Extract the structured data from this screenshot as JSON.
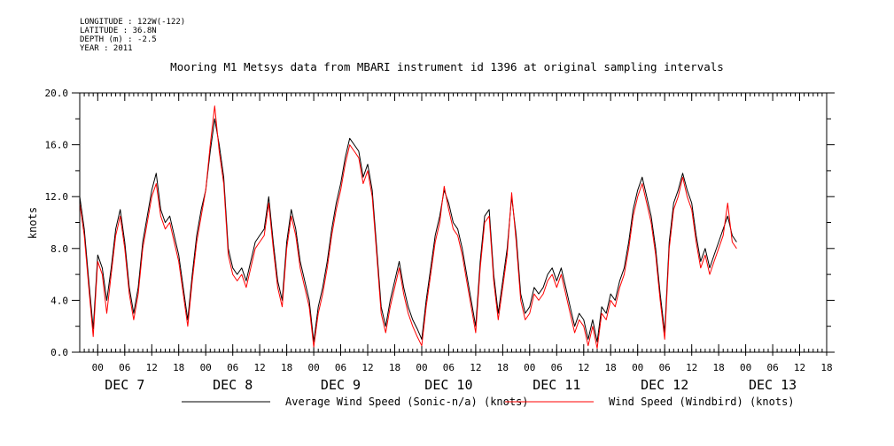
{
  "meta": {
    "longitude": "LONGITUDE : 122W(-122)",
    "latitude": "LATITUDE : 36.8N",
    "depth": "DEPTH (m) : -2.5",
    "year": "YEAR : 2011"
  },
  "chart_data": {
    "type": "line",
    "title": "Mooring M1 Metsys data from MBARI instrument id 1396 at original sampling intervals",
    "ylabel": "knots",
    "ylim": [
      0,
      20
    ],
    "yticks": [
      "0.0",
      "4.0",
      "8.0",
      "12.0",
      "16.0",
      "20.0"
    ],
    "xlim_hours": [
      -4,
      162
    ],
    "hour_ticks": [
      "00",
      "06",
      "12",
      "18",
      "00",
      "06",
      "12",
      "18",
      "00",
      "06",
      "12",
      "18",
      "00",
      "06",
      "12",
      "18",
      "00",
      "06",
      "12",
      "18",
      "00",
      "06",
      "12",
      "18",
      "00",
      "06",
      "12",
      "18"
    ],
    "day_labels": [
      "DEC  7",
      "DEC  8",
      "DEC  9",
      "DEC 10",
      "DEC 11",
      "DEC 12",
      "DEC 13"
    ],
    "legend_placement": "bottom",
    "series": [
      {
        "name": "Average Wind Speed (Sonic-n/a) (knots)",
        "color": "#000000",
        "points": [
          [
            -4,
            12.0
          ],
          [
            -3,
            9.5
          ],
          [
            -2,
            5.5
          ],
          [
            -1,
            1.8
          ],
          [
            0,
            7.5
          ],
          [
            1,
            6.5
          ],
          [
            2,
            4.0
          ],
          [
            3,
            6.5
          ],
          [
            4,
            9.5
          ],
          [
            5,
            11.0
          ],
          [
            6,
            8.5
          ],
          [
            7,
            5.0
          ],
          [
            8,
            3.0
          ],
          [
            9,
            5.0
          ],
          [
            10,
            8.5
          ],
          [
            11,
            10.5
          ],
          [
            12,
            12.5
          ],
          [
            13,
            13.8
          ],
          [
            14,
            11.0
          ],
          [
            15,
            10.0
          ],
          [
            16,
            10.5
          ],
          [
            17,
            9.0
          ],
          [
            18,
            7.5
          ],
          [
            19,
            5.0
          ],
          [
            20,
            2.5
          ],
          [
            21,
            6.0
          ],
          [
            22,
            9.0
          ],
          [
            23,
            11.0
          ],
          [
            24,
            12.5
          ],
          [
            25,
            15.5
          ],
          [
            26,
            18.0
          ],
          [
            27,
            16.0
          ],
          [
            28,
            13.5
          ],
          [
            29,
            8.0
          ],
          [
            30,
            6.5
          ],
          [
            31,
            6.0
          ],
          [
            32,
            6.5
          ],
          [
            33,
            5.5
          ],
          [
            34,
            7.0
          ],
          [
            35,
            8.5
          ],
          [
            36,
            9.0
          ],
          [
            37,
            9.5
          ],
          [
            38,
            12.0
          ],
          [
            39,
            8.5
          ],
          [
            40,
            5.5
          ],
          [
            41,
            4.0
          ],
          [
            42,
            8.5
          ],
          [
            43,
            11.0
          ],
          [
            44,
            9.5
          ],
          [
            45,
            7.0
          ],
          [
            46,
            5.5
          ],
          [
            47,
            4.0
          ],
          [
            48,
            0.8
          ],
          [
            49,
            3.5
          ],
          [
            50,
            5.0
          ],
          [
            51,
            7.0
          ],
          [
            52,
            9.5
          ],
          [
            53,
            11.5
          ],
          [
            54,
            13.0
          ],
          [
            55,
            15.0
          ],
          [
            56,
            16.5
          ],
          [
            57,
            16.0
          ],
          [
            58,
            15.5
          ],
          [
            59,
            13.5
          ],
          [
            60,
            14.5
          ],
          [
            61,
            12.5
          ],
          [
            62,
            8.0
          ],
          [
            63,
            3.5
          ],
          [
            64,
            2.0
          ],
          [
            65,
            4.0
          ],
          [
            66,
            5.5
          ],
          [
            67,
            7.0
          ],
          [
            68,
            5.0
          ],
          [
            69,
            3.5
          ],
          [
            70,
            2.5
          ],
          [
            71,
            1.8
          ],
          [
            72,
            1.0
          ],
          [
            73,
            4.0
          ],
          [
            74,
            6.5
          ],
          [
            75,
            9.0
          ],
          [
            76,
            10.5
          ],
          [
            77,
            12.5
          ],
          [
            78,
            11.5
          ],
          [
            79,
            10.0
          ],
          [
            80,
            9.5
          ],
          [
            81,
            8.0
          ],
          [
            82,
            6.0
          ],
          [
            83,
            4.0
          ],
          [
            84,
            2.0
          ],
          [
            85,
            7.0
          ],
          [
            86,
            10.5
          ],
          [
            87,
            11.0
          ],
          [
            88,
            6.0
          ],
          [
            89,
            3.0
          ],
          [
            90,
            5.5
          ],
          [
            91,
            8.0
          ],
          [
            92,
            12.0
          ],
          [
            93,
            9.0
          ],
          [
            94,
            4.5
          ],
          [
            95,
            3.0
          ],
          [
            96,
            3.5
          ],
          [
            97,
            5.0
          ],
          [
            98,
            4.5
          ],
          [
            99,
            5.0
          ],
          [
            100,
            6.0
          ],
          [
            101,
            6.5
          ],
          [
            102,
            5.5
          ],
          [
            103,
            6.5
          ],
          [
            104,
            5.0
          ],
          [
            105,
            3.5
          ],
          [
            106,
            2.0
          ],
          [
            107,
            3.0
          ],
          [
            108,
            2.5
          ],
          [
            109,
            1.0
          ],
          [
            110,
            2.5
          ],
          [
            111,
            0.8
          ],
          [
            112,
            3.5
          ],
          [
            113,
            3.0
          ],
          [
            114,
            4.5
          ],
          [
            115,
            4.0
          ],
          [
            116,
            5.5
          ],
          [
            117,
            6.5
          ],
          [
            118,
            8.5
          ],
          [
            119,
            11.0
          ],
          [
            120,
            12.5
          ],
          [
            121,
            13.5
          ],
          [
            122,
            12.0
          ],
          [
            123,
            10.5
          ],
          [
            124,
            8.0
          ],
          [
            125,
            4.5
          ],
          [
            126,
            1.5
          ],
          [
            127,
            8.5
          ],
          [
            128,
            11.5
          ],
          [
            129,
            12.5
          ],
          [
            130,
            13.8
          ],
          [
            131,
            12.5
          ],
          [
            132,
            11.5
          ],
          [
            133,
            9.0
          ],
          [
            134,
            7.0
          ],
          [
            135,
            8.0
          ],
          [
            136,
            6.5
          ],
          [
            137,
            7.5
          ],
          [
            138,
            8.5
          ],
          [
            139,
            9.5
          ],
          [
            140,
            10.5
          ],
          [
            141,
            9.0
          ],
          [
            142,
            8.5
          ]
        ]
      },
      {
        "name": "Wind Speed (Windbird) (knots)",
        "color": "#ff0000",
        "points": [
          [
            -4,
            11.5
          ],
          [
            -3,
            9.0
          ],
          [
            -2,
            5.0
          ],
          [
            -1,
            1.2
          ],
          [
            0,
            7.0
          ],
          [
            1,
            6.0
          ],
          [
            2,
            3.0
          ],
          [
            3,
            6.0
          ],
          [
            4,
            9.0
          ],
          [
            5,
            10.5
          ],
          [
            6,
            8.0
          ],
          [
            7,
            4.5
          ],
          [
            8,
            2.5
          ],
          [
            9,
            4.5
          ],
          [
            10,
            8.0
          ],
          [
            11,
            10.0
          ],
          [
            12,
            12.0
          ],
          [
            13,
            13.0
          ],
          [
            14,
            10.5
          ],
          [
            15,
            9.5
          ],
          [
            16,
            10.0
          ],
          [
            17,
            8.5
          ],
          [
            18,
            7.0
          ],
          [
            19,
            4.5
          ],
          [
            20,
            2.0
          ],
          [
            21,
            5.5
          ],
          [
            22,
            8.5
          ],
          [
            23,
            10.5
          ],
          [
            24,
            12.5
          ],
          [
            25,
            16.0
          ],
          [
            26,
            19.0
          ],
          [
            27,
            15.5
          ],
          [
            28,
            13.0
          ],
          [
            29,
            7.5
          ],
          [
            30,
            6.0
          ],
          [
            31,
            5.5
          ],
          [
            32,
            6.0
          ],
          [
            33,
            5.0
          ],
          [
            34,
            6.5
          ],
          [
            35,
            8.0
          ],
          [
            36,
            8.5
          ],
          [
            37,
            9.0
          ],
          [
            38,
            11.5
          ],
          [
            39,
            8.0
          ],
          [
            40,
            5.0
          ],
          [
            41,
            3.5
          ],
          [
            42,
            8.0
          ],
          [
            43,
            10.5
          ],
          [
            44,
            9.0
          ],
          [
            45,
            6.5
          ],
          [
            46,
            5.0
          ],
          [
            47,
            3.5
          ],
          [
            48,
            0.4
          ],
          [
            49,
            3.0
          ],
          [
            50,
            4.5
          ],
          [
            51,
            6.5
          ],
          [
            52,
            9.0
          ],
          [
            53,
            11.0
          ],
          [
            54,
            12.5
          ],
          [
            55,
            14.5
          ],
          [
            56,
            16.0
          ],
          [
            57,
            15.5
          ],
          [
            58,
            15.0
          ],
          [
            59,
            13.0
          ],
          [
            60,
            14.0
          ],
          [
            61,
            12.0
          ],
          [
            62,
            7.5
          ],
          [
            63,
            3.0
          ],
          [
            64,
            1.5
          ],
          [
            65,
            3.5
          ],
          [
            66,
            5.0
          ],
          [
            67,
            6.5
          ],
          [
            68,
            4.5
          ],
          [
            69,
            3.0
          ],
          [
            70,
            2.0
          ],
          [
            71,
            1.2
          ],
          [
            72,
            0.5
          ],
          [
            73,
            3.5
          ],
          [
            74,
            6.0
          ],
          [
            75,
            8.5
          ],
          [
            76,
            10.0
          ],
          [
            77,
            12.8
          ],
          [
            78,
            11.0
          ],
          [
            79,
            9.5
          ],
          [
            80,
            9.0
          ],
          [
            81,
            7.5
          ],
          [
            82,
            5.5
          ],
          [
            83,
            3.5
          ],
          [
            84,
            1.5
          ],
          [
            85,
            6.5
          ],
          [
            86,
            10.0
          ],
          [
            87,
            10.5
          ],
          [
            88,
            5.5
          ],
          [
            89,
            2.5
          ],
          [
            90,
            5.0
          ],
          [
            91,
            7.5
          ],
          [
            92,
            12.3
          ],
          [
            93,
            8.5
          ],
          [
            94,
            4.0
          ],
          [
            95,
            2.5
          ],
          [
            96,
            3.0
          ],
          [
            97,
            4.5
          ],
          [
            98,
            4.0
          ],
          [
            99,
            4.5
          ],
          [
            100,
            5.5
          ],
          [
            101,
            6.0
          ],
          [
            102,
            5.0
          ],
          [
            103,
            6.0
          ],
          [
            104,
            4.5
          ],
          [
            105,
            3.0
          ],
          [
            106,
            1.5
          ],
          [
            107,
            2.5
          ],
          [
            108,
            2.0
          ],
          [
            109,
            0.5
          ],
          [
            110,
            2.0
          ],
          [
            111,
            0.3
          ],
          [
            112,
            3.0
          ],
          [
            113,
            2.5
          ],
          [
            114,
            4.0
          ],
          [
            115,
            3.5
          ],
          [
            116,
            5.0
          ],
          [
            117,
            6.0
          ],
          [
            118,
            8.0
          ],
          [
            119,
            10.5
          ],
          [
            120,
            12.0
          ],
          [
            121,
            13.0
          ],
          [
            122,
            11.5
          ],
          [
            123,
            10.0
          ],
          [
            124,
            7.5
          ],
          [
            125,
            4.0
          ],
          [
            126,
            1.0
          ],
          [
            127,
            8.0
          ],
          [
            128,
            11.0
          ],
          [
            129,
            12.0
          ],
          [
            130,
            13.5
          ],
          [
            131,
            12.0
          ],
          [
            132,
            11.0
          ],
          [
            133,
            8.5
          ],
          [
            134,
            6.5
          ],
          [
            135,
            7.5
          ],
          [
            136,
            6.0
          ],
          [
            137,
            7.0
          ],
          [
            138,
            8.0
          ],
          [
            139,
            9.0
          ],
          [
            140,
            11.5
          ],
          [
            141,
            8.5
          ],
          [
            142,
            8.0
          ]
        ]
      }
    ]
  }
}
